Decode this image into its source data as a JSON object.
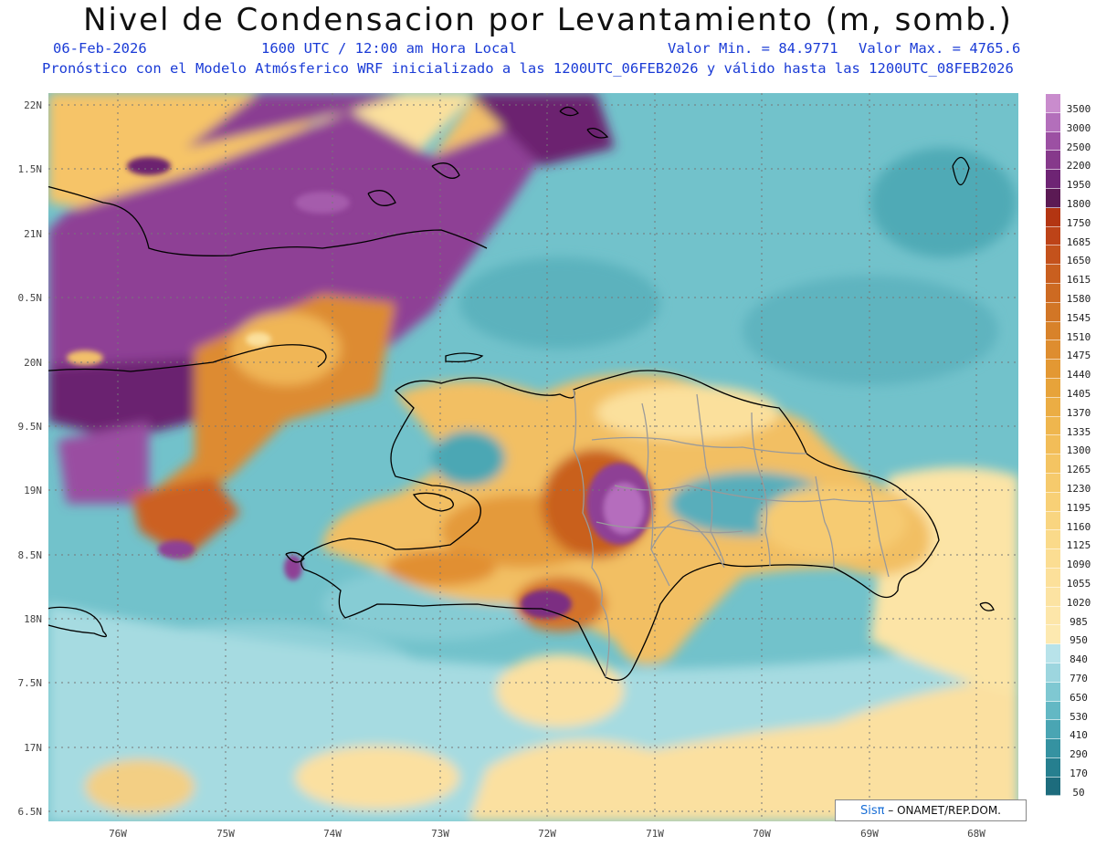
{
  "header": {
    "title": "Nivel de Condensacion por Levantamiento (m, somb.)",
    "date": "06-Feb-2026",
    "time": "1600 UTC / 12:00 am Hora Local",
    "min": "Valor Min. = 84.9771",
    "max": "Valor Max. = 4765.6",
    "forecast": "Pronóstico con el Modelo Atmósferico WRF inicializado a las 1200UTC_06FEB2026 y válido hasta las  1200UTC_08FEB2026"
  },
  "axes": {
    "lat_labels": [
      "22N",
      "1.5N",
      "21N",
      "0.5N",
      "20N",
      "9.5N",
      "19N",
      "8.5N",
      "18N",
      "7.5N",
      "17N",
      "6.5N"
    ],
    "lon_labels": [
      "76W",
      "75W",
      "74W",
      "73W",
      "72W",
      "71W",
      "70W",
      "69W",
      "68W"
    ]
  },
  "colorbar": {
    "labels": [
      "3500",
      "3000",
      "2500",
      "2200",
      "1950",
      "1800",
      "1750",
      "1685",
      "1650",
      "1615",
      "1580",
      "1545",
      "1510",
      "1475",
      "1440",
      "1405",
      "1370",
      "1335",
      "1300",
      "1265",
      "1230",
      "1195",
      "1160",
      "1125",
      "1090",
      "1055",
      "1020",
      "985",
      "950",
      "840",
      "770",
      "650",
      "530",
      "410",
      "290",
      "170",
      "50"
    ],
    "colors": [
      "#c98ccd",
      "#b36fbb",
      "#9c50a3",
      "#86398b",
      "#6e2474",
      "#5b1a54",
      "#b33512",
      "#bd4318",
      "#c4521c",
      "#c95f1f",
      "#cd6a22",
      "#d27626",
      "#d8822a",
      "#de8d2f",
      "#e39833",
      "#e7a33a",
      "#ebad44",
      "#efb64e",
      "#f2bd58",
      "#f4c462",
      "#f6ca6c",
      "#f8d076",
      "#f9d580",
      "#fada8a",
      "#fbdd92",
      "#fce09a",
      "#fce3a2",
      "#fde6a9",
      "#fde9b0",
      "#b8e3ea",
      "#9dd6df",
      "#7fc8d2",
      "#63b8c4",
      "#4aa5b3",
      "#3592a1",
      "#267f8f",
      "#1d6c7d"
    ]
  },
  "credit": {
    "logo": "Sisπ",
    "text": "– ONAMET/REP.DOM."
  },
  "palette": {
    "sea": "#72c2cb",
    "sea_light": "#a9dde3",
    "yellow": "#fbe3a0",
    "orange": "#e59a3a",
    "dark_orange": "#c45a1f",
    "purple": "#8e3f95",
    "dark_purple": "#5c1d57",
    "light_purple": "#b56dbd",
    "teal_dark": "#3d9aa9",
    "coast": "#000000",
    "borders": "#9a9a9a"
  }
}
